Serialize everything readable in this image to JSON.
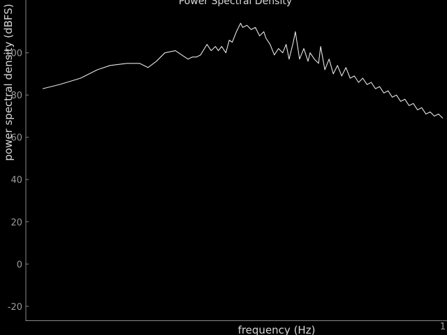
{
  "chart_data": {
    "type": "line",
    "title": "Power Spectral Density",
    "xlabel": "frequency (Hz)",
    "ylabel": "power spectral density (dBFS)",
    "xlim": [
      0,
      1
    ],
    "ylim": [
      -27,
      125
    ],
    "x_tick_labels": [
      "1"
    ],
    "y_ticks": [
      -20,
      0,
      20,
      40,
      60,
      80,
      100
    ],
    "grid": false,
    "colors": {
      "background": "#000000",
      "line": "#e6e6e6",
      "axes": "#8a8a8a",
      "text": "#d8d8d8"
    },
    "series": [
      {
        "name": "",
        "x": [
          0.04,
          0.08,
          0.13,
          0.17,
          0.2,
          0.24,
          0.27,
          0.29,
          0.31,
          0.33,
          0.355,
          0.37,
          0.385,
          0.395,
          0.405,
          0.415,
          0.43,
          0.44,
          0.45,
          0.457,
          0.465,
          0.475,
          0.483,
          0.49,
          0.5,
          0.51,
          0.515,
          0.525,
          0.535,
          0.545,
          0.555,
          0.565,
          0.57,
          0.58,
          0.59,
          0.6,
          0.61,
          0.618,
          0.625,
          0.635,
          0.64,
          0.65,
          0.66,
          0.67,
          0.675,
          0.685,
          0.695,
          0.7,
          0.71,
          0.72,
          0.73,
          0.74,
          0.75,
          0.76,
          0.77,
          0.78,
          0.79,
          0.8,
          0.81,
          0.82,
          0.83,
          0.84,
          0.85,
          0.86,
          0.87,
          0.88,
          0.89,
          0.9,
          0.91,
          0.92,
          0.93,
          0.94,
          0.95,
          0.96,
          0.97,
          0.98,
          0.99
        ],
        "y": [
          83,
          85,
          88,
          92,
          94,
          95,
          95,
          93,
          96,
          100,
          101,
          99,
          97,
          98,
          98,
          99,
          104,
          101,
          103,
          101,
          103,
          100,
          106,
          105,
          110,
          114,
          112,
          113,
          111,
          112,
          108,
          110,
          107,
          104,
          99,
          102,
          100,
          104,
          97,
          105,
          110,
          97,
          102,
          96,
          100,
          97,
          95,
          103,
          92,
          97,
          90,
          94,
          89,
          93,
          88,
          89,
          86,
          88,
          85,
          86,
          83,
          84,
          81,
          82,
          79,
          80,
          77,
          78,
          75,
          76,
          73,
          74,
          71,
          72,
          70,
          71,
          69
        ]
      }
    ]
  }
}
